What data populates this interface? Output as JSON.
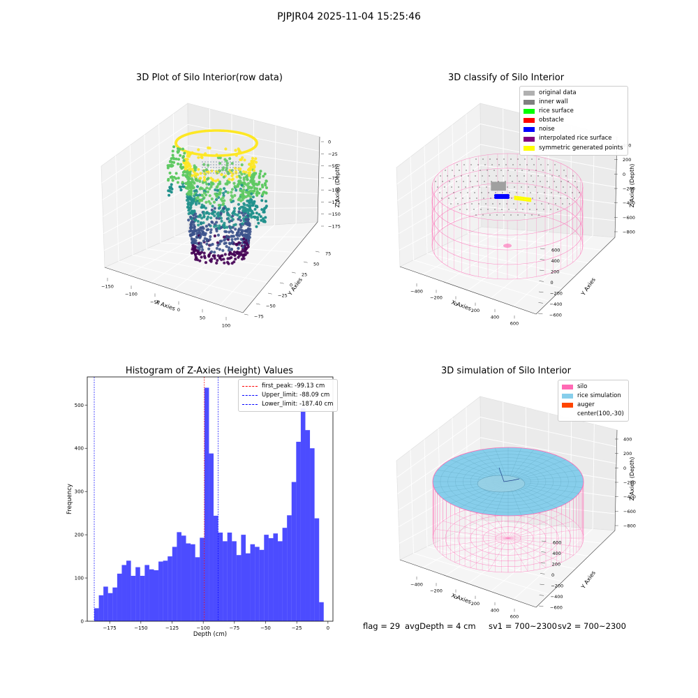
{
  "figure": {
    "title": "PJPJR04 2025-11-04 15:25:46",
    "footer": {
      "flag": "flag = 29",
      "avg_depth": "avgDepth = 4 cm",
      "sv1": "sv1 = 700~2300",
      "sv2": "sv2 = 700~2300"
    }
  },
  "panels": {
    "raw": {
      "title": "3D Plot of Silo Interior(row data)",
      "xlabel": "X Axies",
      "ylabel": "Y Axies",
      "zlabel": "Z Axies (Depth)",
      "xticks": [
        "−150",
        "−100",
        "−50",
        "0",
        "50",
        "100"
      ],
      "yticks": [
        "75",
        "50",
        "25",
        "0",
        "−25",
        "−50",
        "−75"
      ],
      "zticks": [
        "0",
        "−25",
        "−50",
        "−75",
        "−100",
        "−125",
        "−150",
        "−175"
      ],
      "colormap": [
        "#fde725",
        "#5ec962",
        "#21918c",
        "#3b528b",
        "#440154"
      ]
    },
    "classify": {
      "title": "3D classify of Silo Interior",
      "xlabel": "X Axies",
      "ylabel": "Y Axies",
      "zlabel": "Z Axies (Depth)",
      "xticks": [
        "−400",
        "−200",
        "0",
        "200",
        "400",
        "600"
      ],
      "yticks": [
        "600",
        "400",
        "200",
        "0",
        "−200",
        "−400",
        "−600"
      ],
      "zticks": [
        "400",
        "200",
        "0",
        "−200",
        "−400",
        "−600",
        "−800"
      ],
      "legend": [
        {
          "label": "original data",
          "color": "#b0b0b0"
        },
        {
          "label": "inner wall",
          "color": "#808080"
        },
        {
          "label": "rice surface",
          "color": "#00ff00"
        },
        {
          "label": "obstacle",
          "color": "#ff0000"
        },
        {
          "label": "noise",
          "color": "#0000ff"
        },
        {
          "label": "interpolated rice surface",
          "color": "#800080"
        },
        {
          "label": "symmetric generated points",
          "color": "#ffff00"
        }
      ]
    },
    "simulation": {
      "title": "3D simulation of Silo Interior",
      "xlabel": "X Axies",
      "ylabel": "Y Axies",
      "zlabel": "Z Axies (Depth)",
      "xticks": [
        "−400",
        "−200",
        "0",
        "200",
        "400",
        "600"
      ],
      "yticks": [
        "600",
        "400",
        "200",
        "0",
        "−200",
        "−400",
        "−600"
      ],
      "zticks": [
        "400",
        "200",
        "0",
        "−200",
        "−400",
        "−600",
        "−800"
      ],
      "legend": [
        {
          "label": "silo",
          "color": "#ff69b4"
        },
        {
          "label": "rice simulation",
          "color": "#87ceeb"
        },
        {
          "label": "auger",
          "color": "#ff4500"
        },
        {
          "label": "center(100,-30)",
          "color": ""
        }
      ]
    }
  },
  "chart_data": [
    {
      "type": "bar",
      "title": "Histogram of Z-Axies (Height) Values",
      "xlabel": "Depth (cm)",
      "ylabel": "Frequency",
      "xlim": [
        -193,
        4
      ],
      "ylim": [
        0,
        565
      ],
      "xticks": [
        "−175",
        "−150",
        "−125",
        "−100",
        "−75",
        "−50",
        "−25",
        "0"
      ],
      "xtick_values": [
        -175,
        -150,
        -125,
        -100,
        -75,
        -50,
        -25,
        0
      ],
      "yticks": [
        "0",
        "100",
        "200",
        "300",
        "400",
        "500"
      ],
      "ytick_values": [
        0,
        100,
        200,
        300,
        400,
        500
      ],
      "bar_color": "#0000ff",
      "bin_start": -187.4,
      "bin_width": 3.68,
      "values": [
        30,
        60,
        80,
        65,
        78,
        110,
        130,
        140,
        105,
        125,
        105,
        130,
        120,
        118,
        138,
        140,
        150,
        172,
        206,
        198,
        180,
        178,
        148,
        193,
        540,
        388,
        244,
        205,
        185,
        205,
        185,
        153,
        200,
        157,
        178,
        172,
        165,
        200,
        192,
        203,
        185,
        216,
        245,
        322,
        415,
        492,
        442,
        400,
        238,
        44
      ],
      "lines": [
        {
          "label": "first_peak: -99.13 cm",
          "x": -99.13,
          "color": "#ff0000"
        },
        {
          "label": "Upper_limit: -88.09 cm",
          "x": -88.09,
          "color": "#0000ff"
        },
        {
          "label": "Lower_limit: -187.40 cm",
          "x": -187.4,
          "color": "#0000ff"
        }
      ]
    }
  ]
}
